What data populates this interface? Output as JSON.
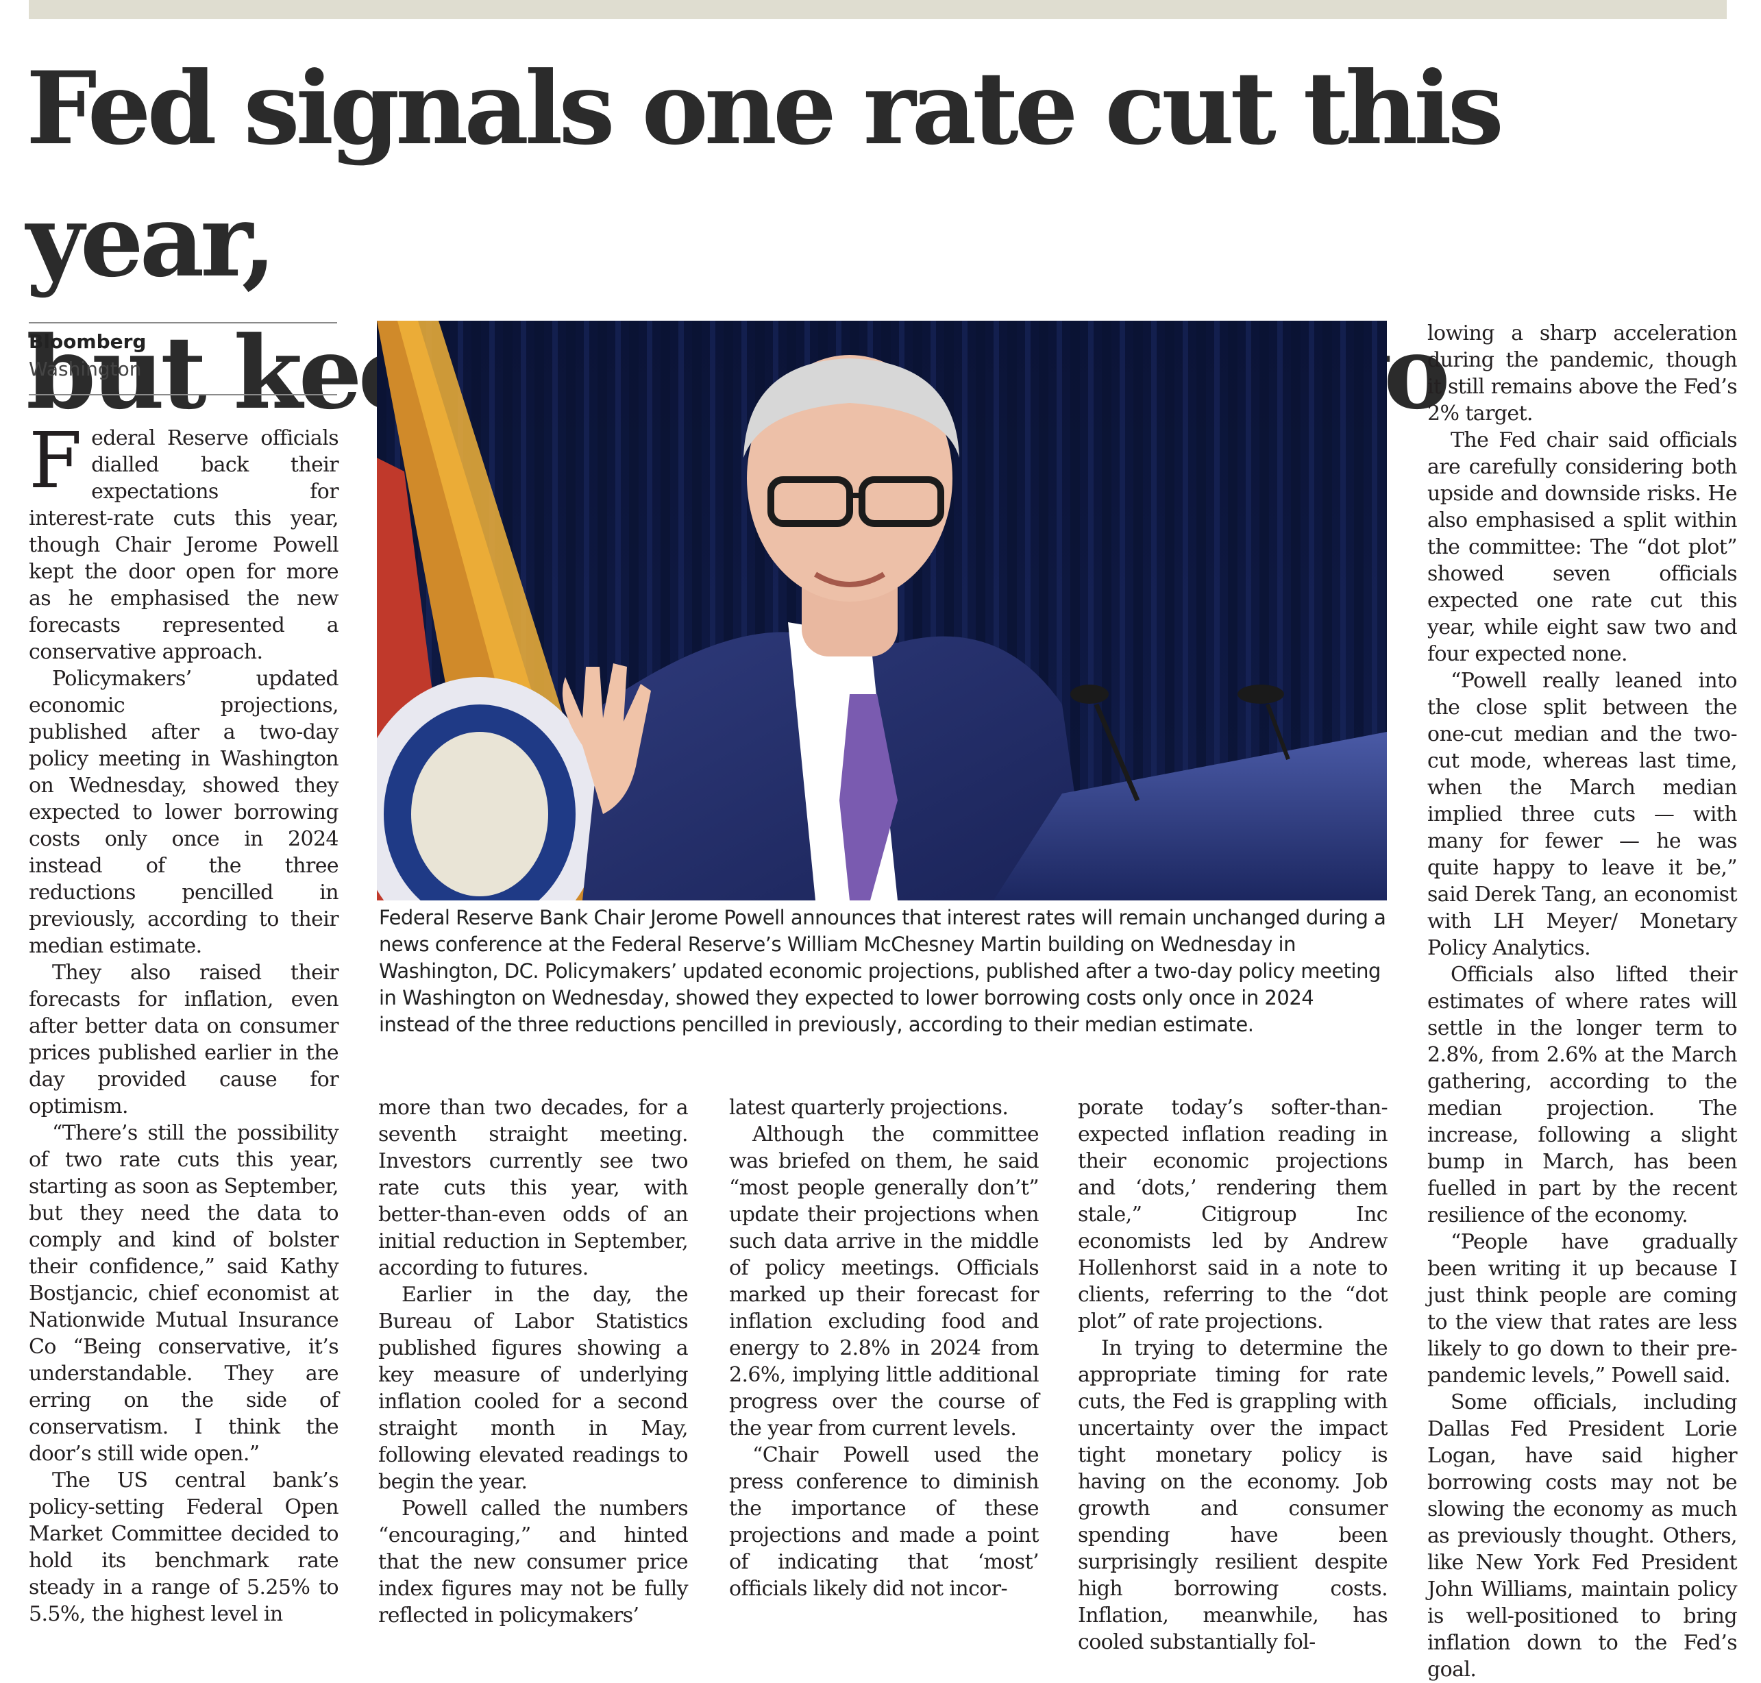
{
  "headline": {
    "line1": "Fed signals one rate cut this year,",
    "line2": "but keeps door open to two"
  },
  "byline": {
    "source": "Bloomberg",
    "location": "Washington"
  },
  "photo": {
    "caption": "Federal Reserve Bank Chair Jerome Powell announces that interest rates will remain unchanged during a news conference at the Federal Reserve’s William McChesney Martin building on Wednesday in Washington, DC. Policymakers’ updated economic projections, published after a two-day policy meeting in Washington on Wednesday, showed they expected to lower borrowing costs only once in 2024 instead of the three reductions pencilled in previously, according to their median estimate."
  },
  "article": {
    "dropcap": "F",
    "col1": [
      "ederal Reserve officials dialled back their expectations for interest-rate cuts this year, though Chair Jerome Powell kept the door open for more as he emphasised the new forecasts represented a conservative approach.",
      "Policymakers’ updated economic projections, published after a two-day policy meeting in Washington on Wednesday, showed they expected to lower borrowing costs only once in 2024 instead of the three reductions pencilled in previously, according to their median estimate.",
      "They also raised their forecasts for inflation, even after better data on consumer prices published earlier in the day provided cause for optimism.",
      "“There’s still the possibility of two rate cuts this year, starting as soon as September, but they need the data to comply and kind of bolster their confidence,” said Kathy Bostjancic, chief economist at Nationwide Mutual Insurance Co “Being conservative, it’s understandable. They are erring on the side of conservatism. I think the door’s still wide open.”",
      "The US central bank’s policy-setting Federal Open Market Committee decided to hold its benchmark rate steady in a range of 5.25% to 5.5%, the highest level in"
    ],
    "col2": [
      "more than two decades, for a seventh straight meeting. Investors currently see two rate cuts this year, with better-than-even odds of an initial reduction in September, according to futures.",
      "Earlier in the day, the Bureau of Labor Statistics published figures showing a key measure of underlying inflation cooled for a second straight month in May, following elevated readings to begin the year.",
      "Powell called the numbers “encouraging,” and hinted that the new consumer price index figures may not be fully reflected in policymakers’"
    ],
    "col3": [
      "latest quarterly projections.",
      "Although the committee was briefed on them, he said “most people generally don’t” update their projections when such data arrive in the middle of policy meetings. Officials marked up their forecast for inflation excluding food and energy to 2.8% in 2024 from 2.6%, implying little additional progress over the course of the year from current levels.",
      "“Chair Powell used the press conference to diminish the importance of these projections and made a point of indicating that ‘most’ officials likely did not incor-"
    ],
    "col4": [
      "porate today’s softer-than-expected inflation reading in their economic projections and ‘dots,’ rendering them stale,” Citigroup Inc economists led by Andrew Hollenhorst said in a note to clients, referring to the “dot plot” of rate projections.",
      "In trying to determine the appropriate timing for rate cuts, the Fed is grappling with uncertainty over the impact tight monetary policy is having on the economy. Job growth and consumer spending have been surprisingly resilient despite high borrowing costs. Inflation, meanwhile, has cooled substantially fol-"
    ],
    "col5": [
      "lowing a sharp acceleration during the pandemic, though it still remains above the Fed’s 2% target.",
      "The Fed chair said officials are carefully considering both upside and downside risks. He also emphasised a split within the committee: The “dot plot” showed seven officials expected one rate cut this year, while eight saw two and four expected none.",
      "“Powell really leaned into the close split between the one-cut median and the two-cut mode, whereas last time, when the March median implied three cuts — with many for fewer — he was quite happy to leave it be,” said Derek Tang, an economist with LH Meyer/ Monetary Policy Analytics.",
      "Officials also lifted their estimates of where rates will settle in the longer term to 2.8%, from 2.6% at the March gathering, according to the median projection. The increase, following a slight bump in March, has been fuelled in part by the recent resilience of the economy.",
      "“People have gradually been writing it up because I just think people are coming to the view that rates are less likely to go down to their pre-pandemic levels,” Powell said.",
      "Some officials, including Dallas Fed President Lorie Logan, have said higher borrowing costs may not be slowing the economy as much as previously thought. Others, like New York Fed President John Williams, maintain policy is well-positioned to bring inflation down to the Fed’s goal."
    ]
  }
}
